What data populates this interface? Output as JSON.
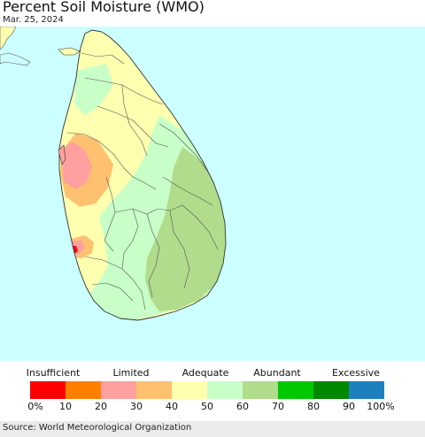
{
  "title": "Percent Soil Moisture (WMO)",
  "date": "Mar. 25, 2024",
  "source": "Source: World Meteorological Organization",
  "legend": {
    "categories": [
      {
        "label": "Insufficient"
      },
      {
        "label": "Limited"
      },
      {
        "label": "Adequate"
      },
      {
        "label": "Abundant"
      },
      {
        "label": "Excessive"
      }
    ],
    "colors": [
      "#ff0000",
      "#ff8000",
      "#ffa0a0",
      "#ffc070",
      "#ffffb0",
      "#c8ffc8",
      "#b0dc8c",
      "#00c800",
      "#008800",
      "#1e7fbf"
    ],
    "ticks": [
      "0%",
      "10",
      "20",
      "30",
      "40",
      "50",
      "60",
      "70",
      "80",
      "90",
      "100%"
    ]
  },
  "colors": {
    "ocean": "#ccffff",
    "land_adequate": "#ffffb0",
    "land_moist": "#c8ffc8",
    "land_abundant": "#b0dc8c",
    "land_limited_dry": "#ffc070",
    "land_limited": "#ffa0a0",
    "land_insufficient": "#ff0000",
    "boundary": "#444444"
  }
}
